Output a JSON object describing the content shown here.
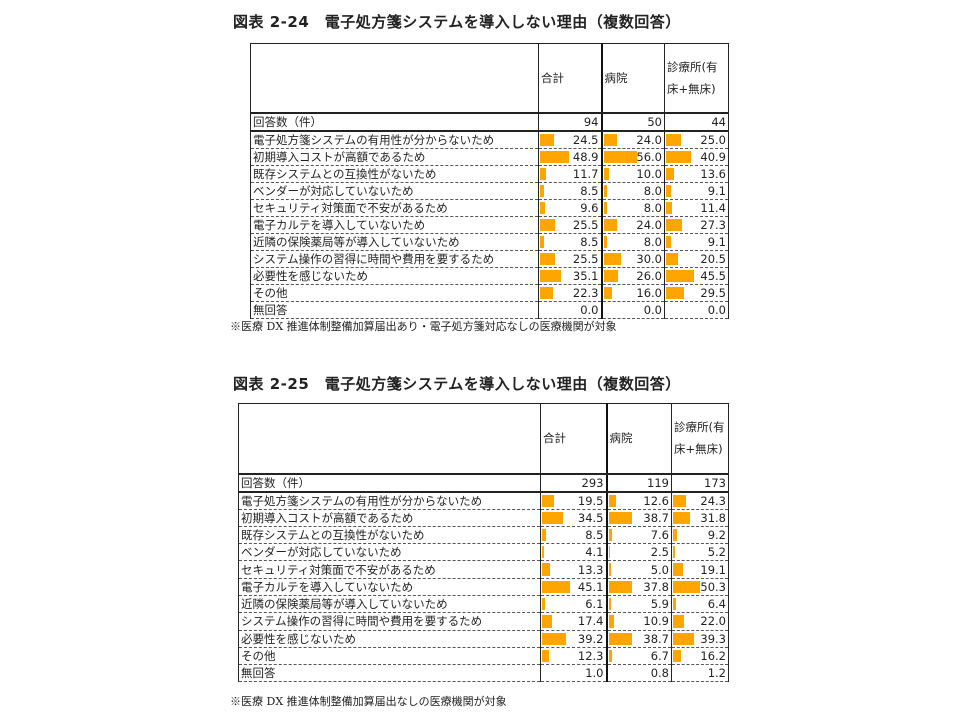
{
  "colors": {
    "bar": "#FFA500"
  },
  "columns": [
    "合計",
    "病院",
    "診療所(有床+無床)"
  ],
  "tables": [
    {
      "title": "図表 2-24　電子処方箋システムを導入しない理由（複数回答）",
      "note": "※医療 DX 推進体制整備加算届出あり・電子処方箋対応なしの医療機関が対象",
      "header": {
        "c1": "合計",
        "c2": "病院",
        "c3": "診療所(有床+無床)"
      },
      "count": {
        "label": "回答数（件）",
        "values": [
          "94",
          "50",
          "44"
        ]
      },
      "rows": [
        {
          "label": "電子処方箋システムの有用性が分からないため",
          "values": [
            24.5,
            24.0,
            25.0
          ]
        },
        {
          "label": "初期導入コストが高額であるため",
          "values": [
            48.9,
            56.0,
            40.9
          ]
        },
        {
          "label": "既存システムとの互換性がないため",
          "values": [
            11.7,
            10.0,
            13.6
          ]
        },
        {
          "label": "ベンダーが対応していないため",
          "values": [
            8.5,
            8.0,
            9.1
          ]
        },
        {
          "label": "セキュリティ対策面で不安があるため",
          "values": [
            9.6,
            8.0,
            11.4
          ]
        },
        {
          "label": "電子カルテを導入していないため",
          "values": [
            25.5,
            24.0,
            27.3
          ]
        },
        {
          "label": "近隣の保険薬局等が導入していないため",
          "values": [
            8.5,
            8.0,
            9.1
          ]
        },
        {
          "label": "システム操作の習得に時間や費用を要するため",
          "values": [
            25.5,
            30.0,
            20.5
          ]
        },
        {
          "label": "必要性を感じないため",
          "values": [
            35.1,
            26.0,
            45.5
          ]
        },
        {
          "label": "その他",
          "values": [
            22.3,
            16.0,
            29.5
          ]
        },
        {
          "label": "無回答",
          "values": [
            0.0,
            0.0,
            0.0
          ]
        }
      ]
    },
    {
      "title": "図表 2-25　電子処方箋システムを導入しない理由（複数回答）",
      "note": "※医療 DX 推進体制整備加算届出なしの医療機関が対象",
      "header": {
        "c1": "合計",
        "c2": "病院",
        "c3": "診療所(有床+無床)"
      },
      "count": {
        "label": "回答数（件）",
        "values": [
          "293",
          "119",
          "173"
        ]
      },
      "rows": [
        {
          "label": "電子処方箋システムの有用性が分からないため",
          "values": [
            19.5,
            12.6,
            24.3
          ]
        },
        {
          "label": "初期導入コストが高額であるため",
          "values": [
            34.5,
            38.7,
            31.8
          ]
        },
        {
          "label": "既存システムとの互換性がないため",
          "values": [
            8.5,
            7.6,
            9.2
          ]
        },
        {
          "label": "ベンダーが対応していないため",
          "values": [
            4.1,
            2.5,
            5.2
          ]
        },
        {
          "label": "セキュリティ対策面で不安があるため",
          "values": [
            13.3,
            5.0,
            19.1
          ]
        },
        {
          "label": "電子カルテを導入していないため",
          "values": [
            45.1,
            37.8,
            50.3
          ]
        },
        {
          "label": "近隣の保険薬局等が導入していないため",
          "values": [
            6.1,
            5.9,
            6.4
          ]
        },
        {
          "label": "システム操作の習得に時間や費用を要するため",
          "values": [
            17.4,
            10.9,
            22.0
          ]
        },
        {
          "label": "必要性を感じないため",
          "values": [
            39.2,
            38.7,
            39.3
          ]
        },
        {
          "label": "その他",
          "values": [
            12.3,
            6.7,
            16.2
          ]
        },
        {
          "label": "無回答",
          "values": [
            1.0,
            0.8,
            1.2
          ]
        }
      ]
    }
  ]
}
